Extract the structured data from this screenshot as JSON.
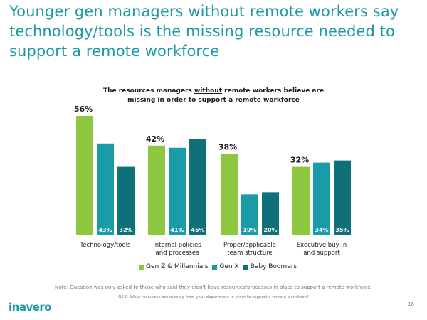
{
  "title": "Younger gen managers without remote workers say technology/tools is the missing resource needed to support a remote workforce",
  "subtitle": {
    "part1": "The resources managers ",
    "emphasis": "without",
    "part2": " remote workers believe are missing in order to support a remote workforce"
  },
  "chart_data": {
    "type": "bar",
    "title": "The resources managers without remote workers believe are missing in order to support a remote workforce",
    "categories": [
      "Technology/tools",
      "Internal policies and processes",
      "Proper/applicable team structure",
      "Executive buy-in and support"
    ],
    "category_lines": [
      [
        "Technology/tools"
      ],
      [
        "Internal policies",
        "and processes"
      ],
      [
        "Proper/applicable",
        "team structure"
      ],
      [
        "Executive buy-in",
        "and support"
      ]
    ],
    "series": [
      {
        "name": "Gen Z & Millennials",
        "color": "#8dc63f",
        "values": [
          56,
          42,
          38,
          32
        ]
      },
      {
        "name": "Gen X",
        "color": "#1a9ba8",
        "values": [
          43,
          41,
          19,
          34
        ]
      },
      {
        "name": "Baby Boomers",
        "color": "#10707a",
        "values": [
          32,
          45,
          20,
          35
        ]
      }
    ],
    "ylim": [
      0,
      60
    ],
    "xlabel": "",
    "ylabel": "",
    "legend_position": "bottom"
  },
  "footer": {
    "note": "Note: Question was only asked to those who said they didn't have resources/processes in place to support a remote workforce.",
    "question": "Q5.9. What resources are missing from your department in order to support a remote workforce?",
    "page_number": "16",
    "logo_text": "inavero"
  }
}
